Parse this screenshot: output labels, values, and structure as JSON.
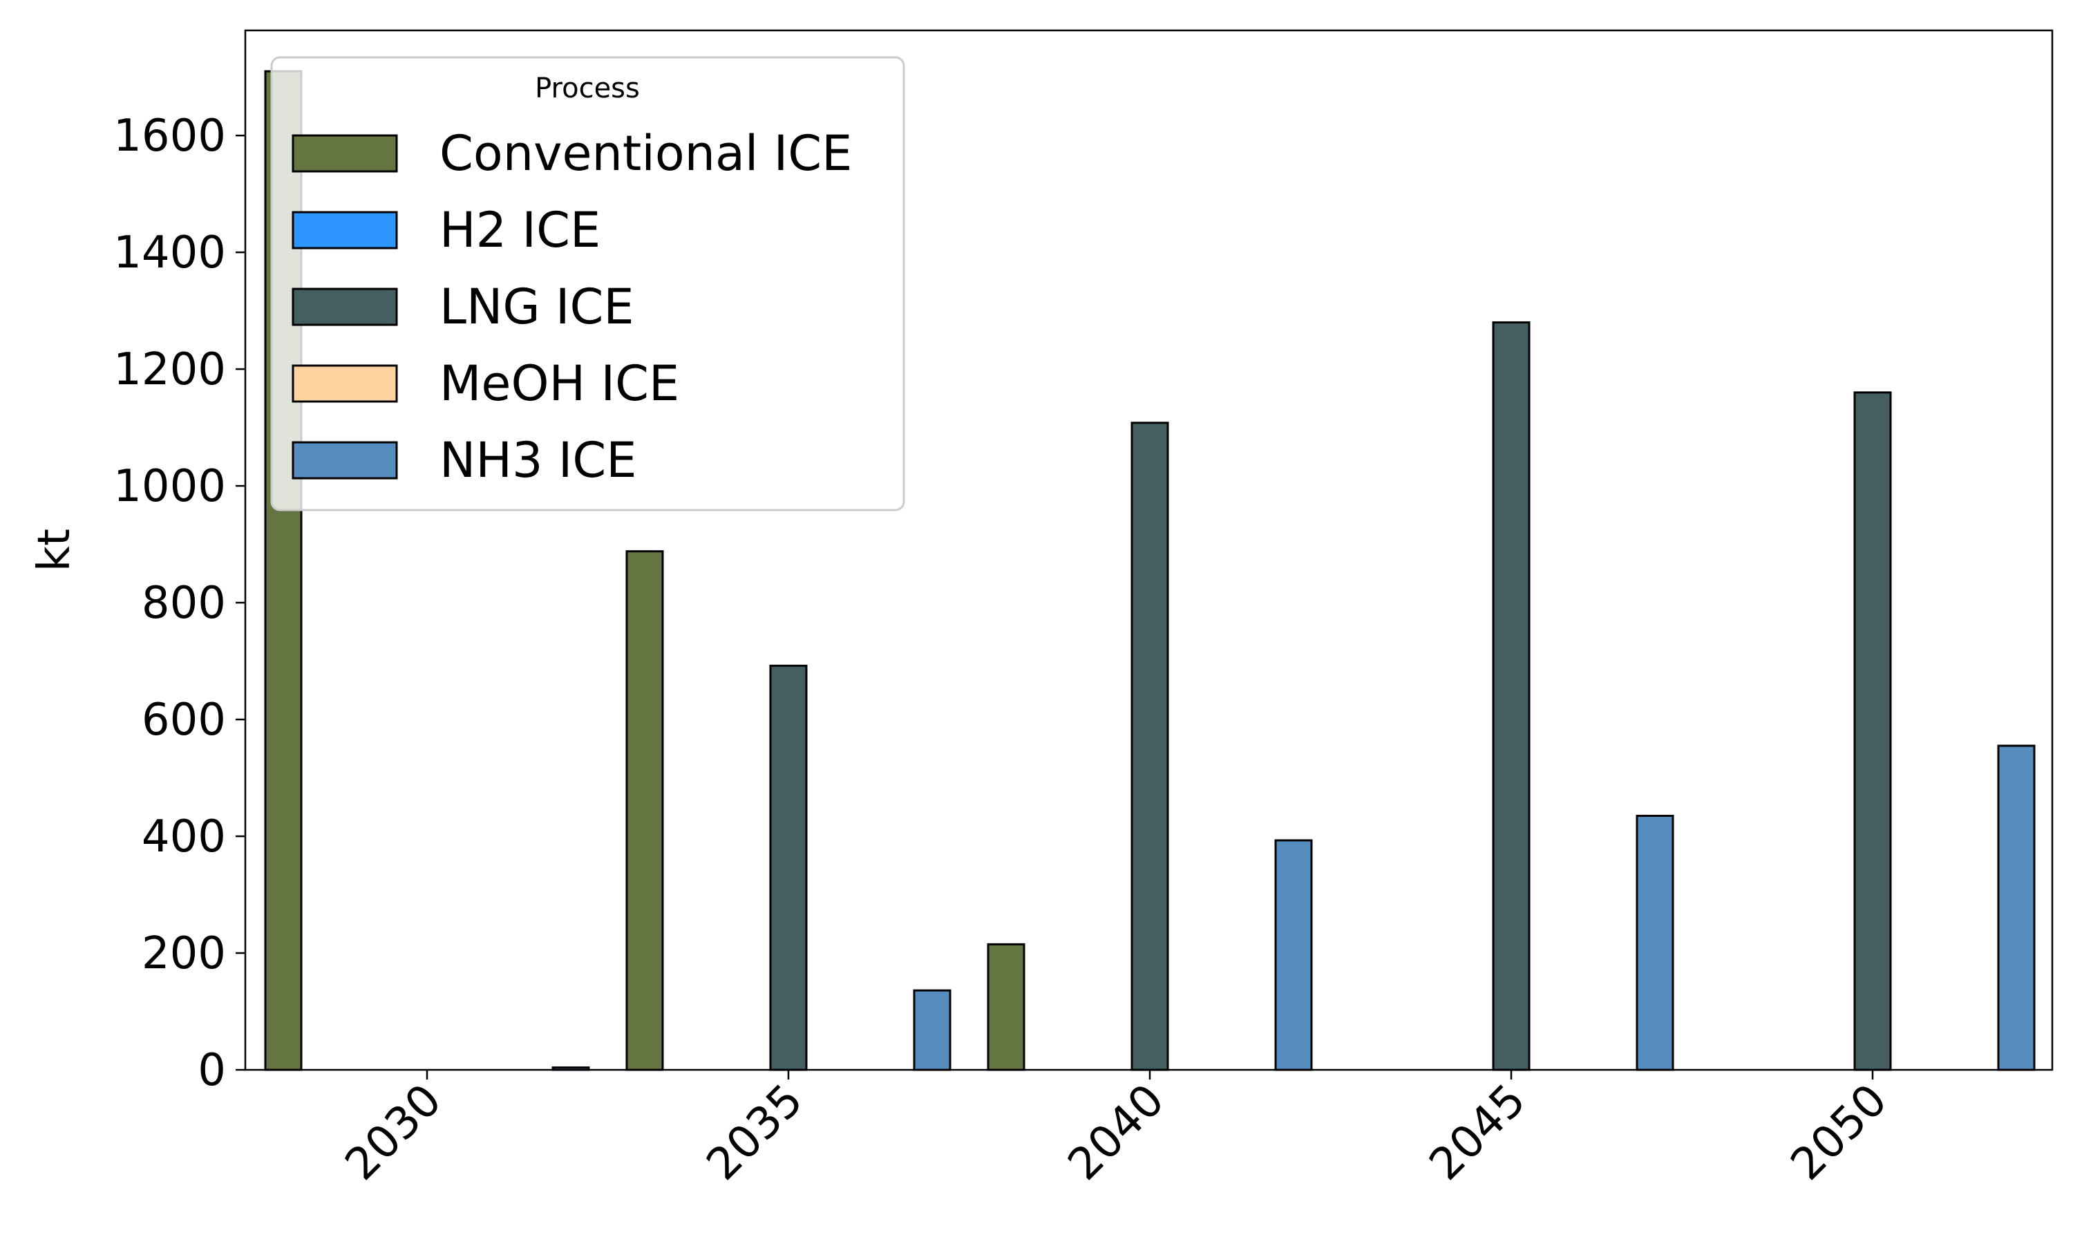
{
  "chart_data": {
    "type": "bar",
    "title": "",
    "xlabel": "",
    "ylabel": "kt",
    "categories": [
      "2030",
      "2035",
      "2040",
      "2045",
      "2050"
    ],
    "ylim": [
      0,
      1780
    ],
    "yticks": [
      0,
      200,
      400,
      600,
      800,
      1000,
      1200,
      1400,
      1600
    ],
    "grid": false,
    "legend": {
      "title": "Process",
      "placement": "top-left"
    },
    "series": [
      {
        "name": "Conventional ICE",
        "color": "#647541",
        "values": [
          1710,
          888,
          215,
          0,
          0
        ]
      },
      {
        "name": "H2 ICE",
        "color": "#2e96ff",
        "values": [
          0,
          0,
          0,
          0,
          0
        ]
      },
      {
        "name": "LNG ICE",
        "color": "#445e61",
        "values": [
          0,
          692,
          1108,
          1280,
          1160
        ]
      },
      {
        "name": "MeOH ICE",
        "color": "#ffd3a0",
        "values": [
          0,
          0,
          0,
          0,
          0
        ]
      },
      {
        "name": "NH3 ICE",
        "color": "#568dbe",
        "values": [
          4,
          136,
          393,
          435,
          555
        ]
      }
    ]
  }
}
